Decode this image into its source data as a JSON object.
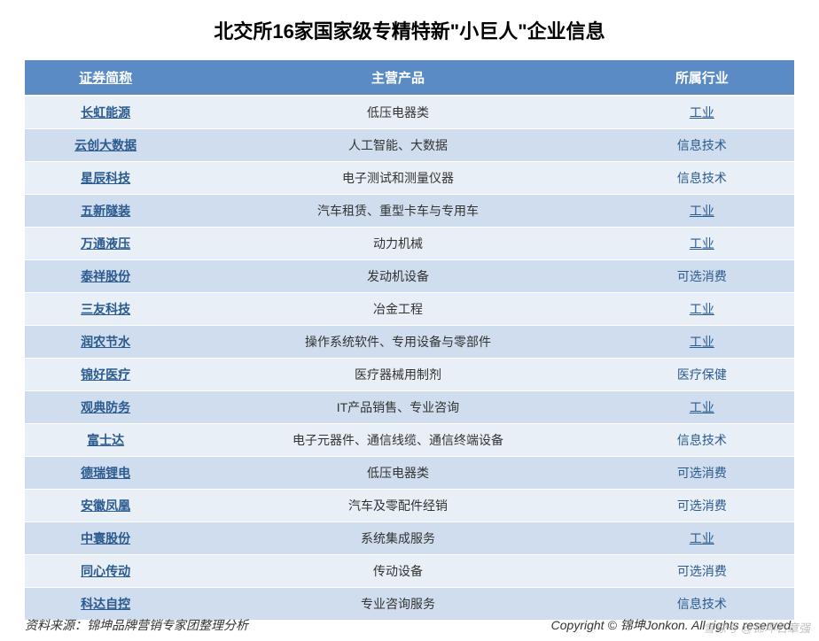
{
  "title": "北交所16家国家级专精特新\"小巨人\"企业信息",
  "colors": {
    "header_bg": "#5b8bc5",
    "row_even_bg": "#e9eff7",
    "row_odd_bg": "#cfddee",
    "link_color": "#2b5a8f"
  },
  "table": {
    "headers": {
      "name": "证券简称",
      "product": "主营产品",
      "industry": "所属行业"
    },
    "rows": [
      {
        "name": "长虹能源",
        "product": "低压电器类",
        "industry": "工业",
        "industry_underline": true
      },
      {
        "name": "云创大数据",
        "product": "人工智能、大数据",
        "industry": "信息技术",
        "industry_underline": false
      },
      {
        "name": "星辰科技",
        "product": "电子测试和测量仪器",
        "industry": "信息技术",
        "industry_underline": false
      },
      {
        "name": "五新隧装",
        "product": "汽车租赁、重型卡车与专用车",
        "industry": "工业",
        "industry_underline": true
      },
      {
        "name": "万通液压",
        "product": "动力机械",
        "industry": "工业",
        "industry_underline": true
      },
      {
        "name": "泰祥股份",
        "product": "发动机设备",
        "industry": "可选消费",
        "industry_underline": false
      },
      {
        "name": "三友科技",
        "product": "冶金工程",
        "industry": "工业",
        "industry_underline": true
      },
      {
        "name": "润农节水",
        "product": "操作系统软件、专用设备与零部件",
        "industry": "工业",
        "industry_underline": true
      },
      {
        "name": "锦好医疗",
        "product": "医疗器械用制剂",
        "industry": "医疗保健",
        "industry_underline": false
      },
      {
        "name": "观典防务",
        "product": "IT产品销售、专业咨询",
        "industry": "工业",
        "industry_underline": true
      },
      {
        "name": "富士达",
        "product": "电子元器件、通信线缆、通信终端设备",
        "industry": "信息技术",
        "industry_underline": false
      },
      {
        "name": "德瑞锂电",
        "product": "低压电器类",
        "industry": "可选消费",
        "industry_underline": false
      },
      {
        "name": "安徽凤凰",
        "product": "汽车及零配件经销",
        "industry": "可选消费",
        "industry_underline": false
      },
      {
        "name": "中寰股份",
        "product": "系统集成服务",
        "industry": "工业",
        "industry_underline": true
      },
      {
        "name": "同心传动",
        "product": "传动设备",
        "industry": "可选消费",
        "industry_underline": false
      },
      {
        "name": "科达自控",
        "product": "专业咨询服务",
        "industry": "信息技术",
        "industry_underline": false
      }
    ]
  },
  "source": "资料来源：锦坤品牌营销专家团整理分析",
  "copyright": "Copyright © 锦坤Jonkon. All rights reserved.",
  "watermark": "雪球号 @锦坤石章强"
}
